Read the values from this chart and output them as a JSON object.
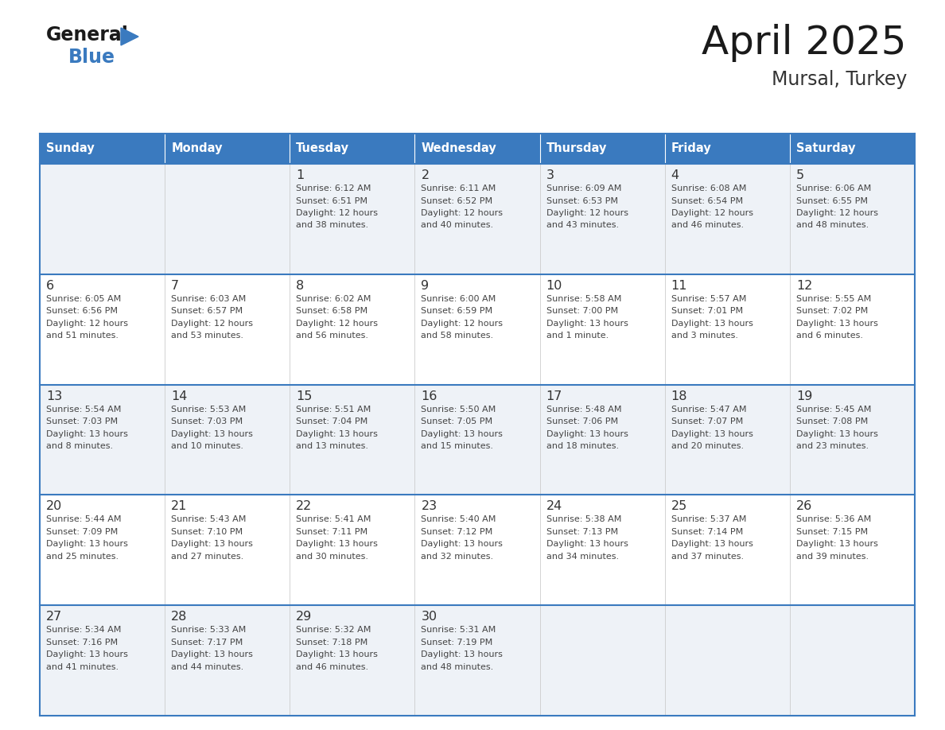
{
  "title": "April 2025",
  "subtitle": "Mursal, Turkey",
  "days_of_week": [
    "Sunday",
    "Monday",
    "Tuesday",
    "Wednesday",
    "Thursday",
    "Friday",
    "Saturday"
  ],
  "header_bg": "#3a7abf",
  "header_text": "#ffffff",
  "cell_bg_light": "#eef2f7",
  "cell_bg_white": "#ffffff",
  "row_line_color": "#3a7abf",
  "title_color": "#1a1a1a",
  "subtitle_color": "#333333",
  "day_num_color": "#333333",
  "cell_text_color": "#444444",
  "logo_text_color": "#1a1a1a",
  "logo_blue_color": "#3a7abf",
  "calendar": [
    [
      {
        "day": null,
        "data": null
      },
      {
        "day": null,
        "data": null
      },
      {
        "day": 1,
        "data": {
          "sunrise": "6:12 AM",
          "sunset": "6:51 PM",
          "daylight": "12 hours",
          "daylight2": "and 38 minutes."
        }
      },
      {
        "day": 2,
        "data": {
          "sunrise": "6:11 AM",
          "sunset": "6:52 PM",
          "daylight": "12 hours",
          "daylight2": "and 40 minutes."
        }
      },
      {
        "day": 3,
        "data": {
          "sunrise": "6:09 AM",
          "sunset": "6:53 PM",
          "daylight": "12 hours",
          "daylight2": "and 43 minutes."
        }
      },
      {
        "day": 4,
        "data": {
          "sunrise": "6:08 AM",
          "sunset": "6:54 PM",
          "daylight": "12 hours",
          "daylight2": "and 46 minutes."
        }
      },
      {
        "day": 5,
        "data": {
          "sunrise": "6:06 AM",
          "sunset": "6:55 PM",
          "daylight": "12 hours",
          "daylight2": "and 48 minutes."
        }
      }
    ],
    [
      {
        "day": 6,
        "data": {
          "sunrise": "6:05 AM",
          "sunset": "6:56 PM",
          "daylight": "12 hours",
          "daylight2": "and 51 minutes."
        }
      },
      {
        "day": 7,
        "data": {
          "sunrise": "6:03 AM",
          "sunset": "6:57 PM",
          "daylight": "12 hours",
          "daylight2": "and 53 minutes."
        }
      },
      {
        "day": 8,
        "data": {
          "sunrise": "6:02 AM",
          "sunset": "6:58 PM",
          "daylight": "12 hours",
          "daylight2": "and 56 minutes."
        }
      },
      {
        "day": 9,
        "data": {
          "sunrise": "6:00 AM",
          "sunset": "6:59 PM",
          "daylight": "12 hours",
          "daylight2": "and 58 minutes."
        }
      },
      {
        "day": 10,
        "data": {
          "sunrise": "5:58 AM",
          "sunset": "7:00 PM",
          "daylight": "13 hours",
          "daylight2": "and 1 minute."
        }
      },
      {
        "day": 11,
        "data": {
          "sunrise": "5:57 AM",
          "sunset": "7:01 PM",
          "daylight": "13 hours",
          "daylight2": "and 3 minutes."
        }
      },
      {
        "day": 12,
        "data": {
          "sunrise": "5:55 AM",
          "sunset": "7:02 PM",
          "daylight": "13 hours",
          "daylight2": "and 6 minutes."
        }
      }
    ],
    [
      {
        "day": 13,
        "data": {
          "sunrise": "5:54 AM",
          "sunset": "7:03 PM",
          "daylight": "13 hours",
          "daylight2": "and 8 minutes."
        }
      },
      {
        "day": 14,
        "data": {
          "sunrise": "5:53 AM",
          "sunset": "7:03 PM",
          "daylight": "13 hours",
          "daylight2": "and 10 minutes."
        }
      },
      {
        "day": 15,
        "data": {
          "sunrise": "5:51 AM",
          "sunset": "7:04 PM",
          "daylight": "13 hours",
          "daylight2": "and 13 minutes."
        }
      },
      {
        "day": 16,
        "data": {
          "sunrise": "5:50 AM",
          "sunset": "7:05 PM",
          "daylight": "13 hours",
          "daylight2": "and 15 minutes."
        }
      },
      {
        "day": 17,
        "data": {
          "sunrise": "5:48 AM",
          "sunset": "7:06 PM",
          "daylight": "13 hours",
          "daylight2": "and 18 minutes."
        }
      },
      {
        "day": 18,
        "data": {
          "sunrise": "5:47 AM",
          "sunset": "7:07 PM",
          "daylight": "13 hours",
          "daylight2": "and 20 minutes."
        }
      },
      {
        "day": 19,
        "data": {
          "sunrise": "5:45 AM",
          "sunset": "7:08 PM",
          "daylight": "13 hours",
          "daylight2": "and 23 minutes."
        }
      }
    ],
    [
      {
        "day": 20,
        "data": {
          "sunrise": "5:44 AM",
          "sunset": "7:09 PM",
          "daylight": "13 hours",
          "daylight2": "and 25 minutes."
        }
      },
      {
        "day": 21,
        "data": {
          "sunrise": "5:43 AM",
          "sunset": "7:10 PM",
          "daylight": "13 hours",
          "daylight2": "and 27 minutes."
        }
      },
      {
        "day": 22,
        "data": {
          "sunrise": "5:41 AM",
          "sunset": "7:11 PM",
          "daylight": "13 hours",
          "daylight2": "and 30 minutes."
        }
      },
      {
        "day": 23,
        "data": {
          "sunrise": "5:40 AM",
          "sunset": "7:12 PM",
          "daylight": "13 hours",
          "daylight2": "and 32 minutes."
        }
      },
      {
        "day": 24,
        "data": {
          "sunrise": "5:38 AM",
          "sunset": "7:13 PM",
          "daylight": "13 hours",
          "daylight2": "and 34 minutes."
        }
      },
      {
        "day": 25,
        "data": {
          "sunrise": "5:37 AM",
          "sunset": "7:14 PM",
          "daylight": "13 hours",
          "daylight2": "and 37 minutes."
        }
      },
      {
        "day": 26,
        "data": {
          "sunrise": "5:36 AM",
          "sunset": "7:15 PM",
          "daylight": "13 hours",
          "daylight2": "and 39 minutes."
        }
      }
    ],
    [
      {
        "day": 27,
        "data": {
          "sunrise": "5:34 AM",
          "sunset": "7:16 PM",
          "daylight": "13 hours",
          "daylight2": "and 41 minutes."
        }
      },
      {
        "day": 28,
        "data": {
          "sunrise": "5:33 AM",
          "sunset": "7:17 PM",
          "daylight": "13 hours",
          "daylight2": "and 44 minutes."
        }
      },
      {
        "day": 29,
        "data": {
          "sunrise": "5:32 AM",
          "sunset": "7:18 PM",
          "daylight": "13 hours",
          "daylight2": "and 46 minutes."
        }
      },
      {
        "day": 30,
        "data": {
          "sunrise": "5:31 AM",
          "sunset": "7:19 PM",
          "daylight": "13 hours",
          "daylight2": "and 48 minutes."
        }
      },
      {
        "day": null,
        "data": null
      },
      {
        "day": null,
        "data": null
      },
      {
        "day": null,
        "data": null
      }
    ]
  ]
}
